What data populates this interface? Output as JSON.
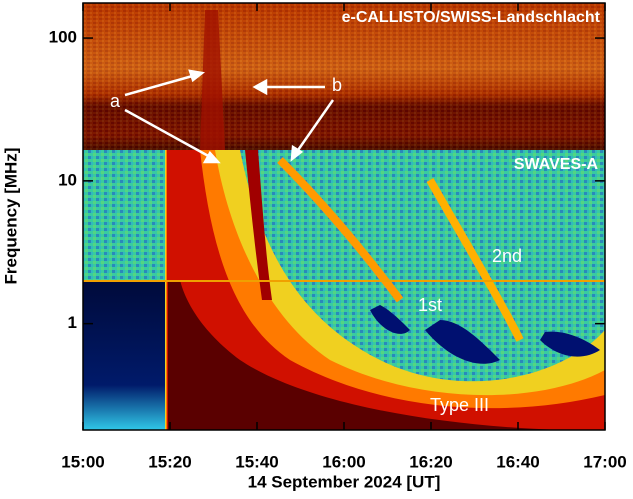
{
  "chart_data": {
    "type": "spectrogram",
    "instrument_labels": [
      "e-CALLISTO/SWISS-Landschlacht",
      "SWAVES-A"
    ],
    "annotations": [
      "a",
      "b",
      "2nd",
      "1st",
      "Type III"
    ],
    "x_label": "14 September 2024 [UT]",
    "y_label": "Frequency [MHz]",
    "xlim": [
      "15:00",
      "17:00"
    ],
    "xticks": [
      "15:00",
      "15:20",
      "15:40",
      "16:00",
      "16:20",
      "16:40",
      "17:00"
    ],
    "ylim": [
      0.18,
      176
    ],
    "yticks": [
      1,
      10,
      100
    ],
    "log_y": true
  }
}
